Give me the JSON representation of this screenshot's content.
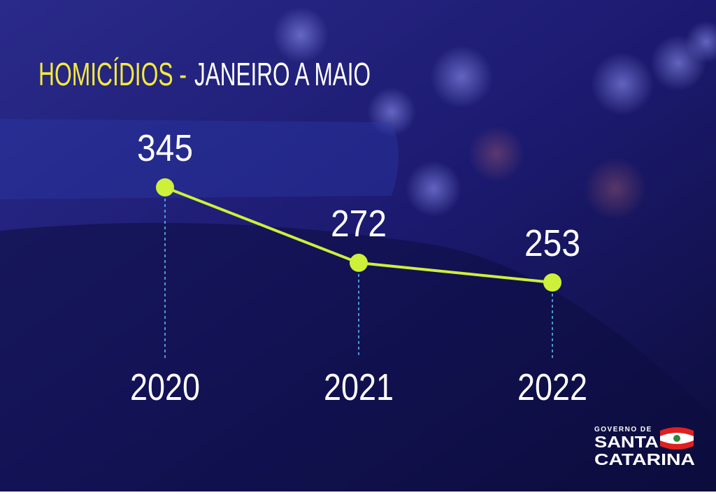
{
  "chart_data": {
    "type": "line",
    "title": "HOMICÍDIOS -",
    "subtitle": "JANEIRO A MAIO",
    "categories": [
      "2020",
      "2021",
      "2022"
    ],
    "series": [
      {
        "name": null,
        "color": "#cdf03a",
        "values": [
          345,
          272,
          253
        ]
      }
    ]
  },
  "logo": {
    "line1": "GOVERNO DE",
    "line2": "SANTA",
    "line3": "CATARINA"
  }
}
